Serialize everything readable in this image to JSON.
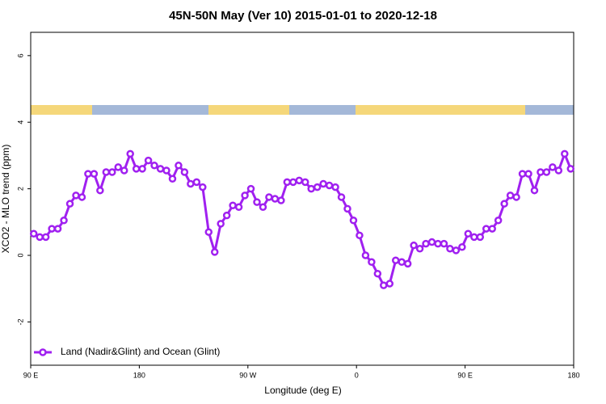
{
  "chart_data": {
    "type": "line",
    "title": "45N-50N May (Ver 10)   2015-01-01 to 2020-12-18",
    "x_label": "Longitude (deg E)",
    "y_label": "XCO2 - MLO trend (ppm)",
    "legend_position": "bottom-left",
    "xlim": [
      90,
      540
    ],
    "ylim": [
      -3.3,
      6.7
    ],
    "xticks": [
      {
        "value": 90,
        "label": "90 E"
      },
      {
        "value": 180,
        "label": "180"
      },
      {
        "value": 270,
        "label": "90 W"
      },
      {
        "value": 360,
        "label": "0"
      },
      {
        "value": 450,
        "label": "90 E"
      },
      {
        "value": 540,
        "label": "180"
      }
    ],
    "yticks": [
      -2,
      0,
      2,
      4,
      6
    ],
    "x": [
      92.5,
      97.5,
      102.5,
      107.5,
      112.5,
      117.5,
      122.5,
      127.5,
      132.5,
      137.5,
      142.5,
      147.5,
      152.5,
      157.5,
      162.5,
      167.5,
      172.5,
      177.5,
      182.5,
      187.5,
      192.5,
      197.5,
      202.5,
      207.5,
      212.5,
      217.5,
      222.5,
      227.5,
      232.5,
      237.5,
      242.5,
      247.5,
      252.5,
      257.5,
      262.5,
      267.5,
      272.5,
      277.5,
      282.5,
      287.5,
      292.5,
      297.5,
      302.5,
      307.5,
      312.5,
      317.5,
      322.5,
      327.5,
      332.5,
      337.5,
      342.5,
      347.5,
      352.5,
      357.5,
      362.5,
      367.5,
      372.5,
      377.5,
      382.5,
      387.5,
      392.5,
      397.5,
      402.5,
      407.5,
      412.5,
      417.5,
      422.5,
      427.5,
      432.5,
      437.5,
      442.5,
      447.5,
      452.5,
      457.5,
      462.5,
      467.5,
      472.5,
      477.5,
      482.5,
      487.5,
      492.5,
      497.5,
      502.5,
      507.5,
      512.5,
      517.5,
      522.5,
      527.5,
      532.5,
      537.5
    ],
    "series": [
      {
        "name": "Land (Nadir&Glint) and Ocean (Glint)",
        "color": "#a020f0",
        "values": [
          0.65,
          0.55,
          0.55,
          0.8,
          0.8,
          1.05,
          1.55,
          1.8,
          1.75,
          2.45,
          2.45,
          1.95,
          2.5,
          2.5,
          2.65,
          2.55,
          3.05,
          2.6,
          2.6,
          2.85,
          2.7,
          2.6,
          2.55,
          2.3,
          2.7,
          2.5,
          2.15,
          2.2,
          2.05,
          0.7,
          0.1,
          0.95,
          1.2,
          1.5,
          1.45,
          1.8,
          2.0,
          1.6,
          1.45,
          1.75,
          1.7,
          1.65,
          2.2,
          2.2,
          2.25,
          2.2,
          2.0,
          2.05,
          2.15,
          2.1,
          2.05,
          1.75,
          1.4,
          1.05,
          0.6,
          0.0,
          -0.2,
          -0.55,
          -0.9,
          -0.85,
          -0.15,
          -0.2,
          -0.25,
          0.3,
          0.2,
          0.35,
          0.4,
          0.35,
          0.35,
          0.2,
          0.15,
          0.25,
          0.65,
          0.55,
          0.55,
          0.8,
          0.8,
          1.05,
          1.55,
          1.8,
          1.75,
          2.45,
          2.45,
          1.95,
          2.5,
          2.5,
          2.65,
          2.55,
          3.05,
          2.6
        ]
      }
    ]
  }
}
